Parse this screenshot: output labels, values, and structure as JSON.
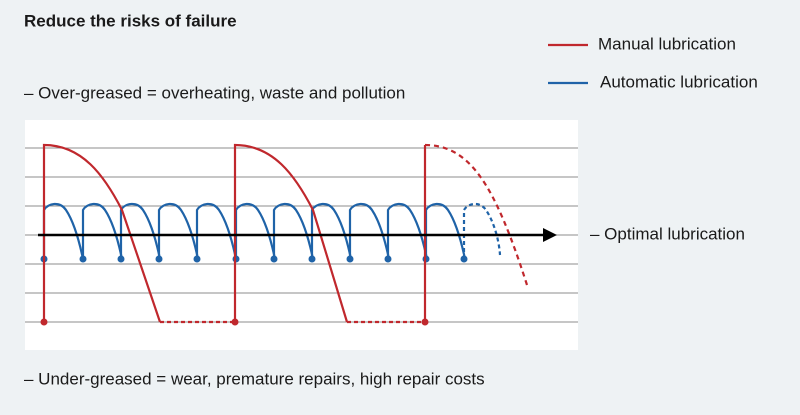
{
  "header": {
    "title": "Reduce the risks of failure"
  },
  "legend": [
    {
      "label": "Manual lubrication"
    },
    {
      "label": "Automatic lubrication"
    }
  ],
  "labels": {
    "over": "– Over-greased = overheating, waste and pollution",
    "optimal": "– Optimal lubrication",
    "under": "– Under-greased = wear, premature repairs, high repair costs"
  }
}
